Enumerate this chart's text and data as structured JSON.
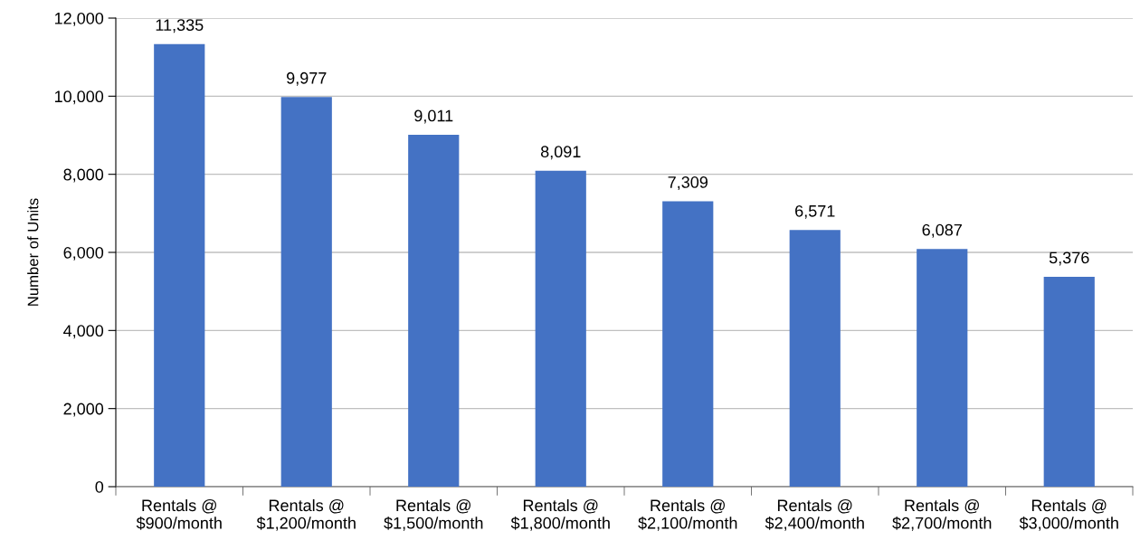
{
  "chart_data": {
    "type": "bar",
    "ylabel": "Number of Units",
    "categories": [
      "Rentals @\n$900/month",
      "Rentals @\n$1,200/month",
      "Rentals @\n$1,500/month",
      "Rentals @\n$1,800/month",
      "Rentals @\n$2,100/month",
      "Rentals @\n$2,400/month",
      "Rentals @\n$2,700/month",
      "Rentals @\n$3,000/month"
    ],
    "values": [
      11335,
      9977,
      9011,
      8091,
      7309,
      6571,
      6087,
      5376
    ],
    "value_labels": [
      "11,335",
      "9,977",
      "9,011",
      "8,091",
      "7,309",
      "6,571",
      "6,087",
      "5,376"
    ],
    "color": "#4472c4",
    "ylim": [
      0,
      12000
    ],
    "yticks": [
      0,
      {
        "value": 2000,
        "label": "2,000"
      },
      {
        "value": 4000,
        "label": "4,000"
      },
      {
        "value": 6000,
        "label": "6,000"
      },
      {
        "value": 8000,
        "label": "8,000"
      },
      {
        "value": 10000,
        "label": "10,000"
      },
      {
        "value": 12000,
        "label": "12,000"
      }
    ],
    "grid": "y",
    "legend": false
  }
}
